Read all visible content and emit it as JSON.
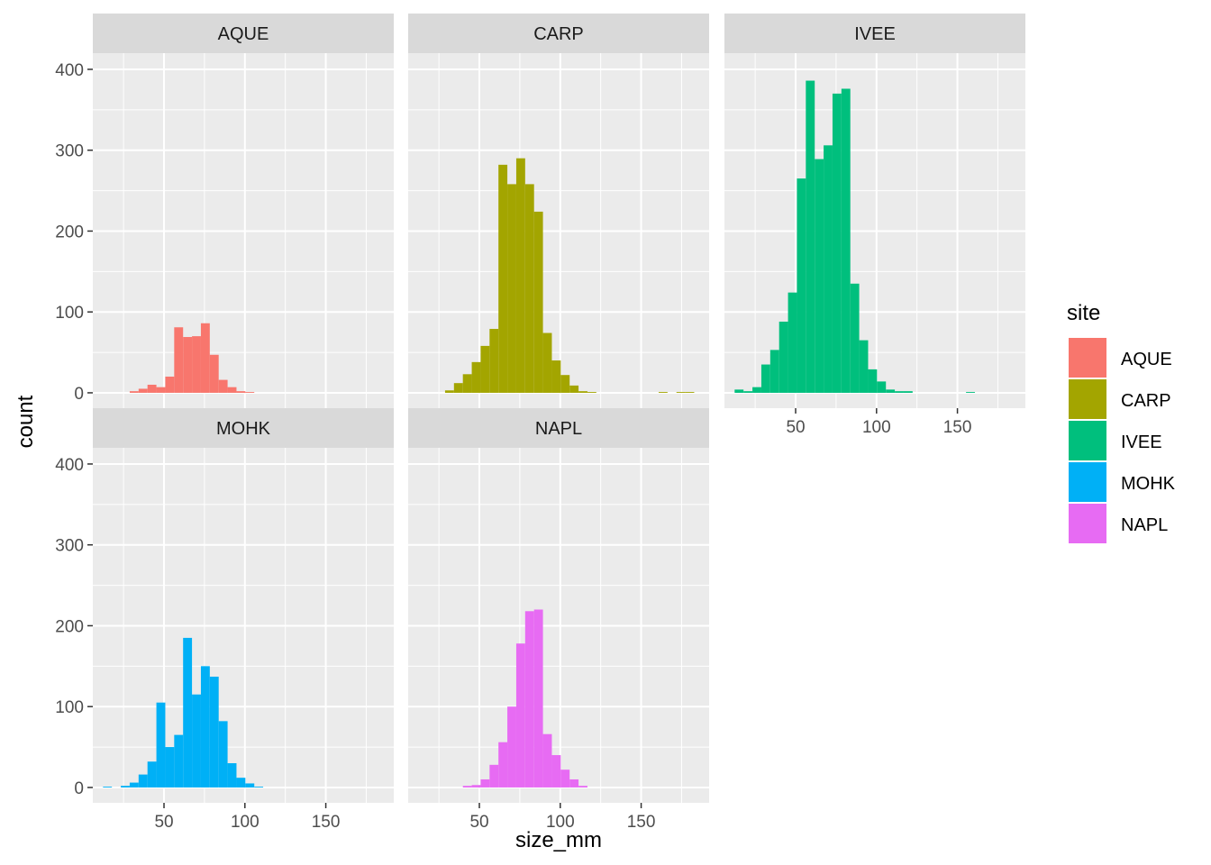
{
  "chart_data": {
    "type": "bar",
    "title": "",
    "xlabel": "size_mm",
    "ylabel": "count",
    "xlim": [
      6,
      192
    ],
    "ylim": [
      -19,
      420
    ],
    "x_ticks": [
      50,
      100,
      150
    ],
    "y_ticks": [
      0,
      100,
      200,
      300,
      400
    ],
    "grid": true,
    "legend": {
      "title": "site",
      "placement": "right",
      "entries": [
        {
          "label": "AQUE",
          "color": "#F8766D"
        },
        {
          "label": "CARP",
          "color": "#A3A500"
        },
        {
          "label": "IVEE",
          "color": "#00BF7D"
        },
        {
          "label": "MOHK",
          "color": "#00B0F6"
        },
        {
          "label": "NAPL",
          "color": "#E76BF3"
        }
      ]
    },
    "bin_edges": [
      12.3,
      17.8,
      23.3,
      28.8,
      34.3,
      39.8,
      45.3,
      50.8,
      56.3,
      61.8,
      67.3,
      72.8,
      78.3,
      83.8,
      89.3,
      94.8,
      100.3,
      105.8,
      111.3,
      116.8,
      122.3,
      127.8,
      133.3,
      138.8,
      144.3,
      149.8,
      155.3,
      160.8,
      166.3,
      171.8,
      177.3,
      182.8
    ],
    "panels": [
      {
        "name": "AQUE",
        "color": "#F8766D",
        "counts": [
          0,
          0,
          0,
          2,
          5,
          10,
          7,
          20,
          81,
          69,
          70,
          86,
          47,
          16,
          7,
          2,
          1,
          0,
          0,
          0,
          0,
          0,
          0,
          0,
          0,
          0,
          0,
          0,
          0,
          0,
          0
        ]
      },
      {
        "name": "CARP",
        "color": "#A3A500",
        "counts": [
          0,
          0,
          0,
          3,
          12,
          23,
          38,
          58,
          79,
          282,
          258,
          290,
          258,
          224,
          74,
          40,
          22,
          9,
          2,
          1,
          0,
          0,
          0,
          0,
          0,
          0,
          0,
          1,
          0,
          1,
          1
        ]
      },
      {
        "name": "IVEE",
        "color": "#00BF7D",
        "counts": [
          4,
          2,
          7,
          35,
          53,
          88,
          124,
          265,
          386,
          289,
          306,
          370,
          376,
          135,
          65,
          29,
          14,
          4,
          2,
          2,
          0,
          0,
          0,
          0,
          0,
          0,
          1,
          0,
          0,
          0,
          0
        ]
      },
      {
        "name": "MOHK",
        "color": "#00B0F6",
        "counts": [
          1,
          0,
          2,
          6,
          16,
          32,
          105,
          50,
          65,
          185,
          115,
          150,
          137,
          82,
          30,
          12,
          5,
          1,
          0,
          0,
          0,
          0,
          0,
          0,
          0,
          0,
          0,
          0,
          0,
          0,
          0
        ]
      },
      {
        "name": "NAPL",
        "color": "#E76BF3",
        "counts": [
          0,
          0,
          0,
          0,
          0,
          2,
          3,
          10,
          28,
          56,
          100,
          178,
          218,
          220,
          66,
          40,
          22,
          10,
          2,
          0,
          0,
          0,
          0,
          0,
          0,
          0,
          0,
          0,
          0,
          0,
          0
        ]
      }
    ]
  }
}
